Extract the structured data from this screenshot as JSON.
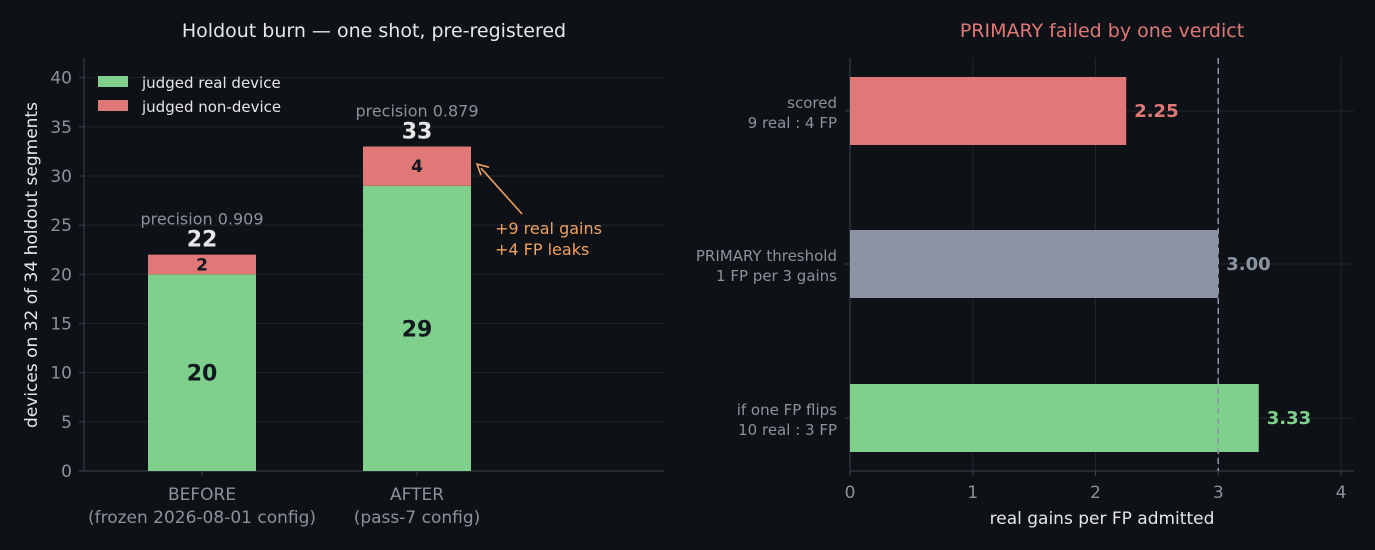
{
  "colors": {
    "background": "#0e1217",
    "grid": "#1f252d",
    "axis": "#3a414b",
    "tick_text": "#8b929b",
    "label_text": "#e6e6e6",
    "green": "#7fd08c",
    "red": "#e07878",
    "gray": "#8a94a2",
    "orange": "#f0a060",
    "dark_text": "#111820"
  },
  "chart_data": [
    {
      "type": "bar",
      "stacked": true,
      "title": "Holdout burn — one shot, pre-registered",
      "ylabel": "devices on 32 of 34 holdout segments",
      "ylim": [
        0,
        42
      ],
      "yticks": [
        0,
        5,
        10,
        15,
        20,
        25,
        30,
        35,
        40
      ],
      "grid": true,
      "legend_position": "top-left",
      "categories": [
        [
          "BEFORE",
          "(frozen 2026-08-01 config)"
        ],
        [
          "AFTER",
          "(pass-7 config)"
        ]
      ],
      "series": [
        {
          "name": "judged real device",
          "color": "green",
          "values": [
            20,
            29
          ]
        },
        {
          "name": "judged non-device",
          "color": "red",
          "values": [
            2,
            4
          ]
        }
      ],
      "totals": [
        22,
        33
      ],
      "precision_labels": [
        "precision 0.909",
        "precision 0.879"
      ],
      "annotation": {
        "lines": [
          "+9 real gains",
          "+4 FP leaks"
        ],
        "points_to": {
          "category": 1,
          "value": 31
        }
      }
    },
    {
      "type": "bar",
      "orientation": "horizontal",
      "title": "PRIMARY failed by one verdict",
      "xlabel": "real gains per FP admitted",
      "xlim": [
        0,
        4.1
      ],
      "xticks": [
        0,
        1,
        2,
        3,
        4
      ],
      "grid": true,
      "reference_line": 3,
      "bars": [
        {
          "label": [
            "scored",
            "9 real : 4 FP"
          ],
          "value": 2.25,
          "value_label": "2.25",
          "color": "red"
        },
        {
          "label": [
            "PRIMARY threshold",
            "1 FP per 3 gains"
          ],
          "value": 3.0,
          "value_label": "3.00",
          "color": "gray"
        },
        {
          "label": [
            "if one FP flips",
            "10 real : 3 FP"
          ],
          "value": 3.33,
          "value_label": "3.33",
          "color": "green"
        }
      ]
    }
  ]
}
